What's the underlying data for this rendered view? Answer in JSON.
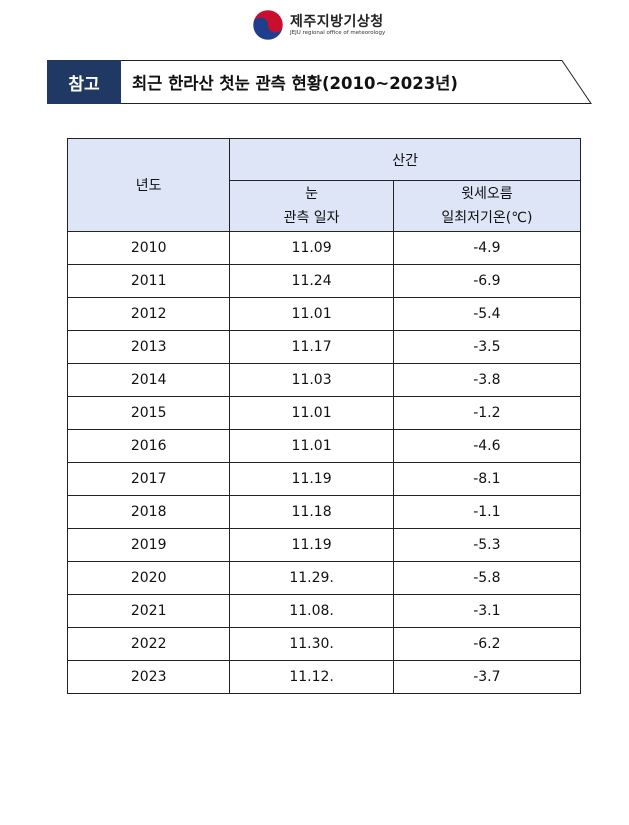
{
  "header": {
    "org_name_kr": "제주지방기상청",
    "org_name_en": "JEJU regional office of meteorology"
  },
  "title": {
    "badge": "참고",
    "text": "최근 한라산 첫눈 관측 현황(2010~2023년)"
  },
  "table": {
    "col_year": "년도",
    "group_label": "산간",
    "col_date_line1": "눈",
    "col_date_line2": "관측 일자",
    "col_temp_line1": "윗세오름",
    "col_temp_line2": "일최저기온(℃)",
    "rows": [
      {
        "year": "2010",
        "date": "11.09",
        "temp": "-4.9"
      },
      {
        "year": "2011",
        "date": "11.24",
        "temp": "-6.9"
      },
      {
        "year": "2012",
        "date": "11.01",
        "temp": "-5.4"
      },
      {
        "year": "2013",
        "date": "11.17",
        "temp": "-3.5"
      },
      {
        "year": "2014",
        "date": "11.03",
        "temp": "-3.8"
      },
      {
        "year": "2015",
        "date": "11.01",
        "temp": "-1.2"
      },
      {
        "year": "2016",
        "date": "11.01",
        "temp": "-4.6"
      },
      {
        "year": "2017",
        "date": "11.19",
        "temp": "-8.1"
      },
      {
        "year": "2018",
        "date": "11.18",
        "temp": "-1.1"
      },
      {
        "year": "2019",
        "date": "11.19",
        "temp": "-5.3"
      },
      {
        "year": "2020",
        "date": "11.29.",
        "temp": "-5.8"
      },
      {
        "year": "2021",
        "date": "11.08.",
        "temp": "-3.1"
      },
      {
        "year": "2022",
        "date": "11.30.",
        "temp": "-6.2"
      },
      {
        "year": "2023",
        "date": "11.12.",
        "temp": "-3.7"
      }
    ]
  }
}
